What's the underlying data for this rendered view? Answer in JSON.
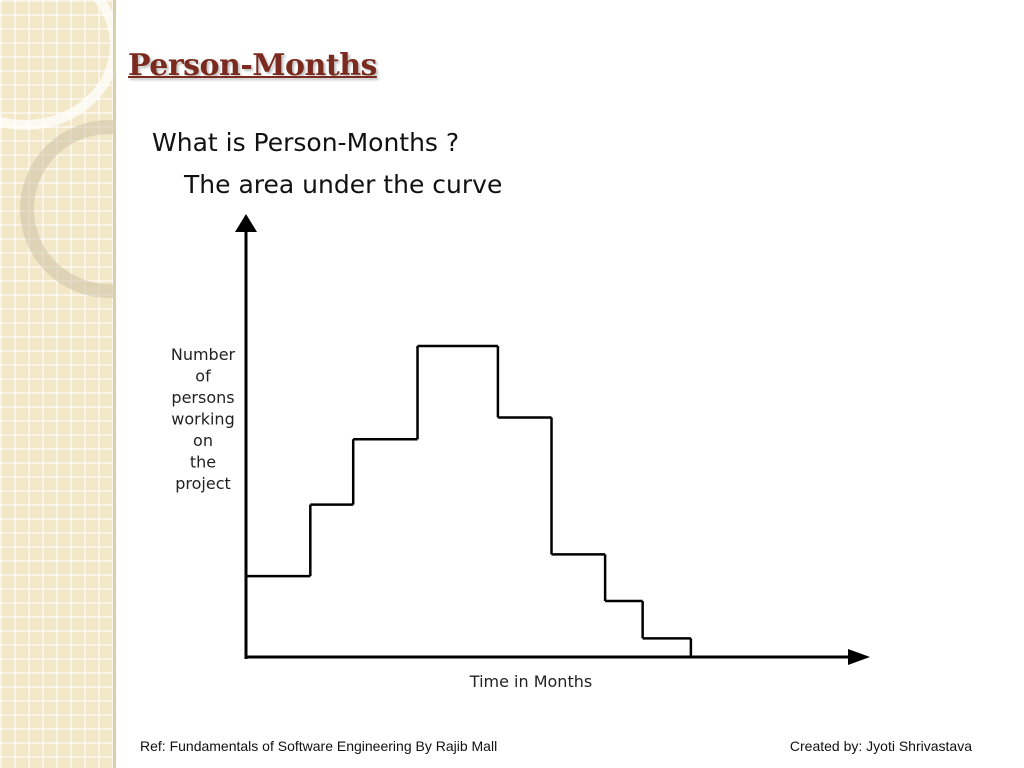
{
  "slide": {
    "title": "Person-Months",
    "question": "What is Person-Months ?",
    "answer": "The area under the curve"
  },
  "footer": {
    "ref": "Ref: Fundamentals of Software Engineering By Rajib Mall",
    "credit": "Created by: Jyoti  Shrivastava"
  },
  "colors": {
    "title": "#7a2a1e",
    "sidebar": "#f2e7c7",
    "line": "#000000"
  },
  "chart_data": {
    "type": "line",
    "step": true,
    "title": "",
    "xlabel": "Time in Months",
    "ylabel_lines": [
      "Number",
      "of",
      "persons",
      "working",
      "on",
      "the",
      "project"
    ],
    "x_ticks": false,
    "y_ticks": false,
    "grid": false,
    "xlim": [
      0,
      100
    ],
    "ylim": [
      0,
      100
    ],
    "x": [
      0,
      12,
      20,
      32,
      47,
      57,
      67,
      74,
      83
    ],
    "y": [
      26,
      49,
      70,
      100,
      77,
      33,
      18,
      6,
      6
    ]
  }
}
